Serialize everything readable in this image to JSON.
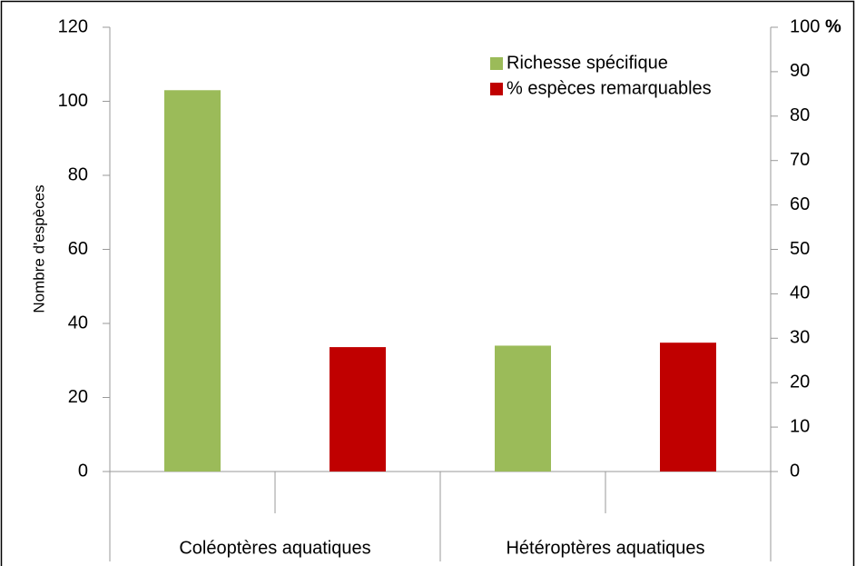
{
  "chart_data": {
    "type": "bar",
    "ylabel": "Nombre d'espèces",
    "y2label": "%",
    "categories": [
      "Coléoptères aquatiques",
      "Hétéroptères aquatiques"
    ],
    "series": [
      {
        "name": "Richesse spécifique",
        "color": "#9bbb59",
        "values": [
          103,
          34
        ]
      },
      {
        "name": "% espèces remarquables",
        "color": "#c00000",
        "values": [
          28,
          29
        ],
        "axis": "y2"
      }
    ],
    "ylim": [
      0,
      120
    ],
    "yticks": [
      0,
      20,
      40,
      60,
      80,
      100,
      120
    ],
    "y2lim": [
      0,
      100
    ],
    "y2ticks": [
      0,
      10,
      20,
      30,
      40,
      50,
      60,
      70,
      80,
      90,
      100
    ],
    "grid": false,
    "legend": "upper right"
  }
}
